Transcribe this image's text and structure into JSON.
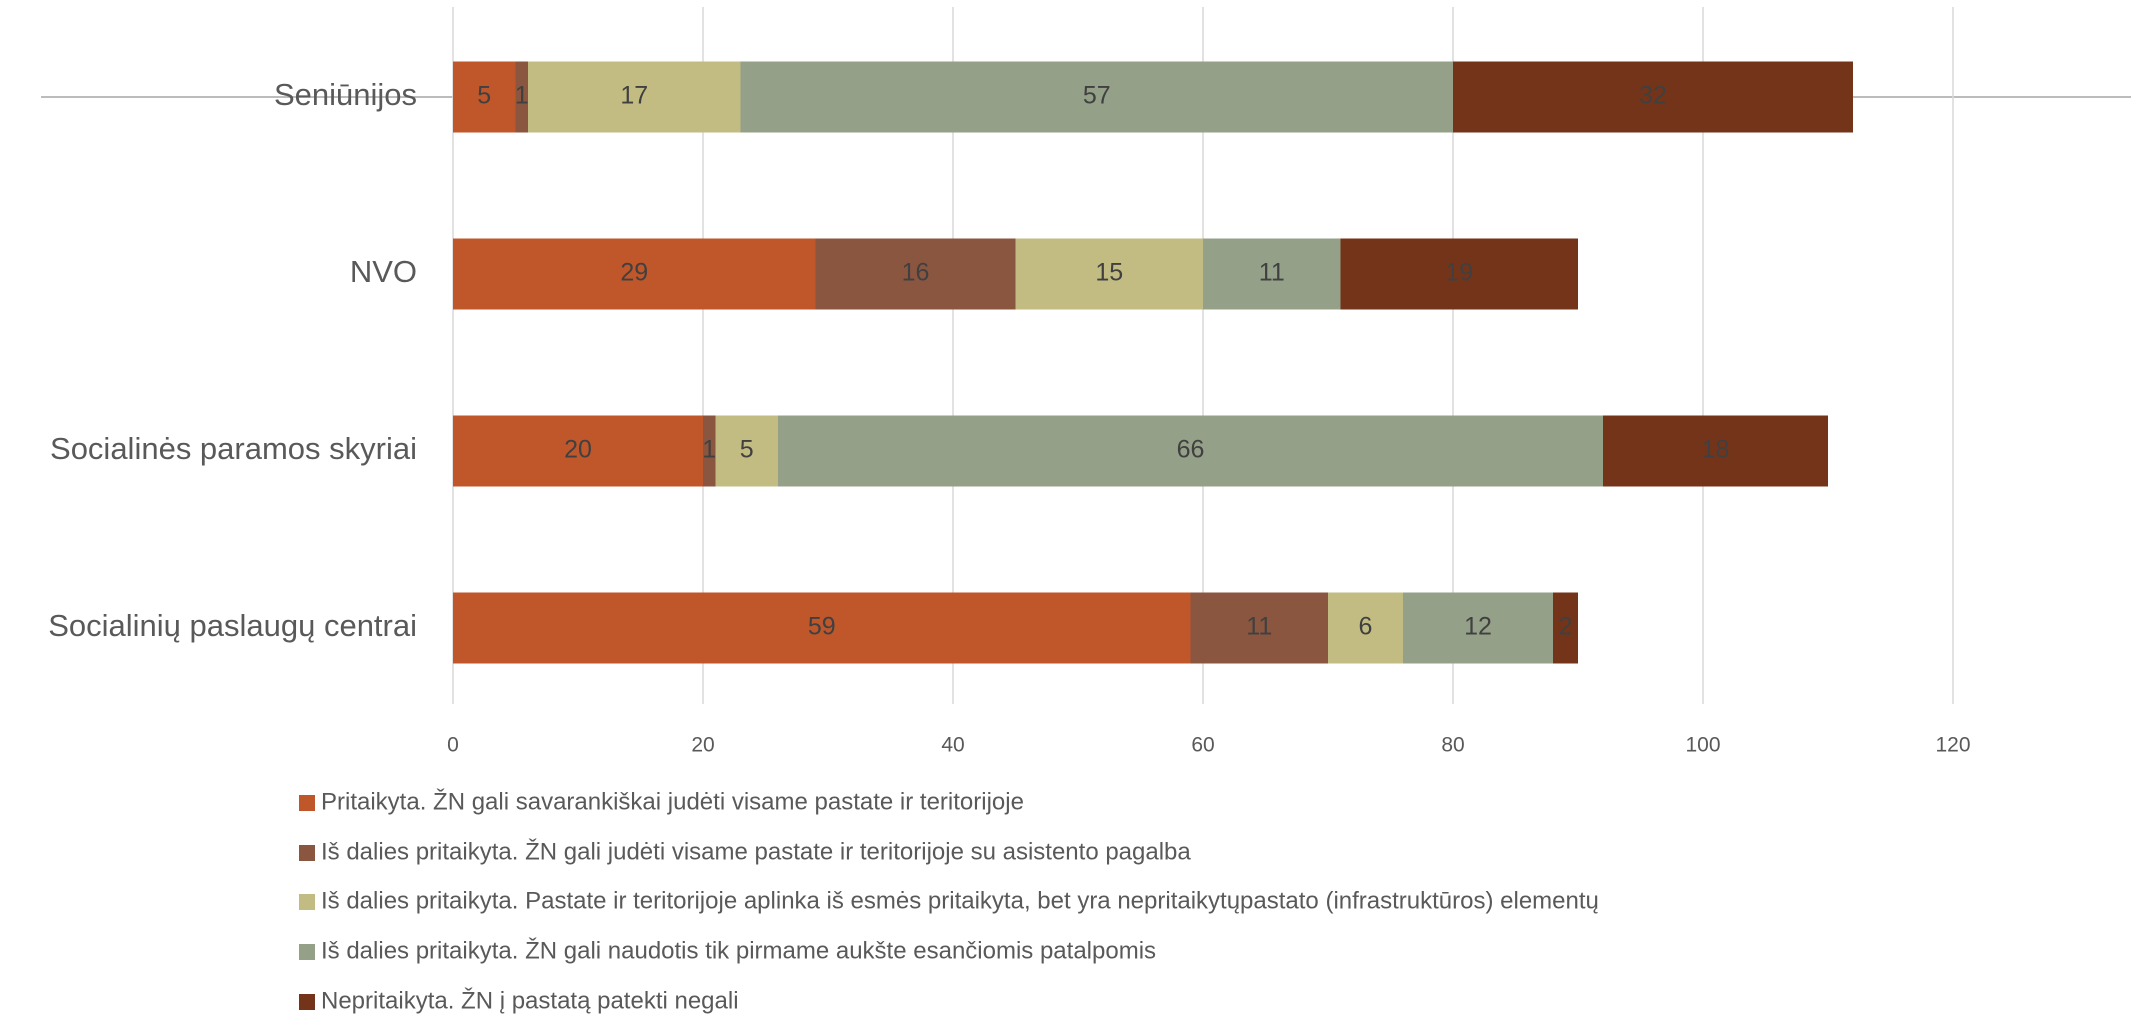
{
  "chart_data": {
    "type": "bar",
    "orientation": "horizontal",
    "stacked": true,
    "categories": [
      "Seniūnijos",
      "NVO",
      "Socialinės paramos skyriai",
      "Socialinių paslaugų centrai"
    ],
    "series": [
      {
        "name": "Pritaikyta. ŽN gali savarankiškai judėti visame pastate ir teritorijoje",
        "color": "#c0572b",
        "values": [
          5,
          29,
          20,
          59
        ]
      },
      {
        "name": "Iš dalies pritaikyta. ŽN gali judėti visame pastate ir teritorijoje su asistento pagalba",
        "color": "#8b5640",
        "values": [
          1,
          16,
          1,
          11
        ]
      },
      {
        "name": "Iš dalies pritaikyta. Pastate ir teritorijoje aplinka iš esmės pritaikyta, bet yra nepritaikytųpastato (infrastruktūros) elementų",
        "color": "#c2bc82",
        "values": [
          17,
          15,
          5,
          6
        ]
      },
      {
        "name": "Iš dalies pritaikyta. ŽN gali naudotis tik pirmame aukšte esančiomis patalpomis",
        "color": "#94a088",
        "values": [
          57,
          11,
          66,
          12
        ]
      },
      {
        "name": "Nepritaikyta. ŽN į pastatą patekti negali",
        "color": "#74341a",
        "values": [
          32,
          19,
          18,
          2
        ]
      }
    ],
    "xlim": [
      0,
      120
    ],
    "xticks": [
      0,
      20,
      40,
      60,
      80,
      100,
      120
    ],
    "grid": true,
    "legend": "bottom",
    "data_labels": true
  }
}
